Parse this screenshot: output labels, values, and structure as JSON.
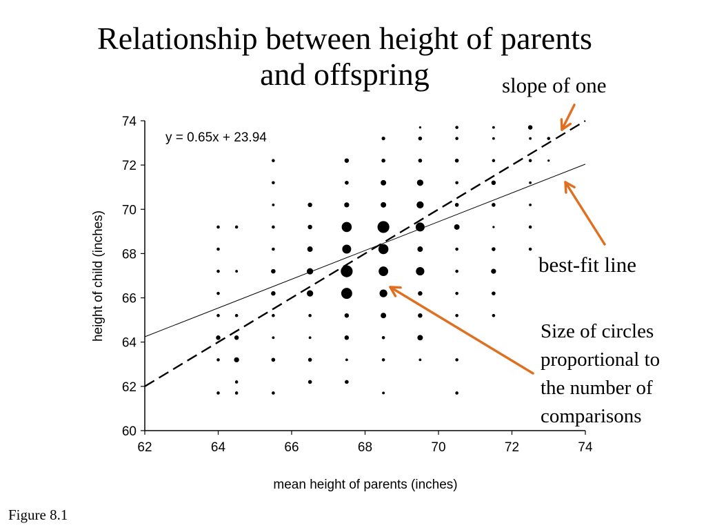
{
  "title_line1": "Relationship between height of parents",
  "title_line2": "and offspring",
  "annotations": {
    "slope_of_one": "slope of one",
    "best_fit_line": "best-fit line",
    "circle_size": [
      "Size of circles",
      "proportional to",
      "the number of",
      "comparisons"
    ]
  },
  "figure_label": "Figure 8.1",
  "colors": {
    "arrow": "#e07020",
    "points": "#000000"
  },
  "chart_data": {
    "type": "scatter",
    "xlabel": "mean height of parents (inches)",
    "ylabel": "height of child (inches)",
    "xlim": [
      62,
      74
    ],
    "ylim": [
      60,
      74
    ],
    "xticks": [
      "62",
      "64",
      "66",
      "68",
      "70",
      "72",
      "74"
    ],
    "yticks": [
      "60",
      "62",
      "64",
      "66",
      "68",
      "70",
      "72",
      "74"
    ],
    "grid": false,
    "equation": "y = 0.65x + 23.94",
    "best_fit": {
      "slope": 0.65,
      "intercept": 23.94,
      "style": "solid"
    },
    "slope_one_line": {
      "slope": 1,
      "intercept": 0,
      "style": "dashed"
    },
    "points": [
      {
        "x": 64,
        "y": 69.2,
        "size": 1
      },
      {
        "x": 64.5,
        "y": 69.2,
        "size": 1
      },
      {
        "x": 65.5,
        "y": 72.2,
        "size": 1
      },
      {
        "x": 65.5,
        "y": 71.2,
        "size": 1
      },
      {
        "x": 65.5,
        "y": 70.2,
        "size": 0.7
      },
      {
        "x": 65.5,
        "y": 69.2,
        "size": 1
      },
      {
        "x": 66.5,
        "y": 70.2,
        "size": 2
      },
      {
        "x": 66.5,
        "y": 69.2,
        "size": 2
      },
      {
        "x": 67.5,
        "y": 72.2,
        "size": 2
      },
      {
        "x": 67.5,
        "y": 71.2,
        "size": 1.5
      },
      {
        "x": 67.5,
        "y": 70.2,
        "size": 2.5
      },
      {
        "x": 67.5,
        "y": 69.2,
        "size": 10
      },
      {
        "x": 68.5,
        "y": 73.2,
        "size": 1.3
      },
      {
        "x": 68.5,
        "y": 72.2,
        "size": 1.5
      },
      {
        "x": 68.5,
        "y": 71.2,
        "size": 3
      },
      {
        "x": 68.5,
        "y": 70.2,
        "size": 3
      },
      {
        "x": 68.5,
        "y": 69.2,
        "size": 14
      },
      {
        "x": 69.5,
        "y": 73.7,
        "size": 0.5
      },
      {
        "x": 69.5,
        "y": 73.2,
        "size": 1.5
      },
      {
        "x": 69.5,
        "y": 72.2,
        "size": 1.5
      },
      {
        "x": 69.5,
        "y": 71.2,
        "size": 4
      },
      {
        "x": 69.5,
        "y": 70.2,
        "size": 5
      },
      {
        "x": 69.5,
        "y": 69.2,
        "size": 8
      },
      {
        "x": 70.5,
        "y": 73.7,
        "size": 1
      },
      {
        "x": 70.5,
        "y": 73.2,
        "size": 1
      },
      {
        "x": 70.5,
        "y": 72.2,
        "size": 1.5
      },
      {
        "x": 70.5,
        "y": 71.2,
        "size": 1
      },
      {
        "x": 70.5,
        "y": 70.2,
        "size": 1.5
      },
      {
        "x": 70.5,
        "y": 69.2,
        "size": 3
      },
      {
        "x": 71.5,
        "y": 73.7,
        "size": 0.7
      },
      {
        "x": 71.5,
        "y": 73.2,
        "size": 0.7
      },
      {
        "x": 71.5,
        "y": 72.2,
        "size": 1
      },
      {
        "x": 71.5,
        "y": 71.2,
        "size": 2
      },
      {
        "x": 71.5,
        "y": 70.2,
        "size": 1.5
      },
      {
        "x": 71.5,
        "y": 69.2,
        "size": 0.5
      },
      {
        "x": 72.5,
        "y": 73.7,
        "size": 2
      },
      {
        "x": 72.5,
        "y": 73.2,
        "size": 0.7
      },
      {
        "x": 72.5,
        "y": 72.2,
        "size": 1
      },
      {
        "x": 72.5,
        "y": 71.2,
        "size": 0.7
      },
      {
        "x": 72.5,
        "y": 70.2,
        "size": 0.7
      },
      {
        "x": 72.5,
        "y": 69.2,
        "size": 1
      },
      {
        "x": 73,
        "y": 73.2,
        "size": 1
      },
      {
        "x": 73,
        "y": 72.2,
        "size": 0.5
      },
      {
        "x": 64,
        "y": 68.2,
        "size": 1
      },
      {
        "x": 64,
        "y": 67.2,
        "size": 1
      },
      {
        "x": 64,
        "y": 66.2,
        "size": 1
      },
      {
        "x": 64,
        "y": 65.2,
        "size": 1
      },
      {
        "x": 64,
        "y": 64.2,
        "size": 2
      },
      {
        "x": 64,
        "y": 63.2,
        "size": 1
      },
      {
        "x": 64,
        "y": 61.7,
        "size": 1
      },
      {
        "x": 64.5,
        "y": 67.2,
        "size": 0.7
      },
      {
        "x": 64.5,
        "y": 65.2,
        "size": 1
      },
      {
        "x": 64.5,
        "y": 64.2,
        "size": 2
      },
      {
        "x": 64.5,
        "y": 63.2,
        "size": 2.5
      },
      {
        "x": 64.5,
        "y": 62.2,
        "size": 1
      },
      {
        "x": 64.5,
        "y": 61.7,
        "size": 1
      },
      {
        "x": 65.5,
        "y": 68.2,
        "size": 1
      },
      {
        "x": 65.5,
        "y": 67.2,
        "size": 2
      },
      {
        "x": 65.5,
        "y": 66.2,
        "size": 2
      },
      {
        "x": 65.5,
        "y": 65.2,
        "size": 1
      },
      {
        "x": 65.5,
        "y": 64.2,
        "size": 0.7
      },
      {
        "x": 65.5,
        "y": 63.2,
        "size": 1.5
      },
      {
        "x": 65.5,
        "y": 61.7,
        "size": 1
      },
      {
        "x": 66.5,
        "y": 68.2,
        "size": 3
      },
      {
        "x": 66.5,
        "y": 67.2,
        "size": 4
      },
      {
        "x": 66.5,
        "y": 66.2,
        "size": 4
      },
      {
        "x": 66.5,
        "y": 65.2,
        "size": 1
      },
      {
        "x": 66.5,
        "y": 64.2,
        "size": 0.7
      },
      {
        "x": 66.5,
        "y": 63.2,
        "size": 1.5
      },
      {
        "x": 66.5,
        "y": 62.2,
        "size": 1.5
      },
      {
        "x": 67.5,
        "y": 68.2,
        "size": 8
      },
      {
        "x": 67.5,
        "y": 67.2,
        "size": 14
      },
      {
        "x": 67.5,
        "y": 66.2,
        "size": 12
      },
      {
        "x": 67.5,
        "y": 65.2,
        "size": 2
      },
      {
        "x": 67.5,
        "y": 64.2,
        "size": 2
      },
      {
        "x": 67.5,
        "y": 63.2,
        "size": 0.7
      },
      {
        "x": 67.5,
        "y": 62.2,
        "size": 1.5
      },
      {
        "x": 68.5,
        "y": 68.2,
        "size": 10
      },
      {
        "x": 68.5,
        "y": 67.2,
        "size": 9
      },
      {
        "x": 68.5,
        "y": 66.2,
        "size": 6
      },
      {
        "x": 68.5,
        "y": 65.2,
        "size": 3
      },
      {
        "x": 68.5,
        "y": 64.2,
        "size": 1
      },
      {
        "x": 68.5,
        "y": 63.2,
        "size": 1
      },
      {
        "x": 68.5,
        "y": 61.7,
        "size": 0.7
      },
      {
        "x": 69.5,
        "y": 68.2,
        "size": 3
      },
      {
        "x": 69.5,
        "y": 67.2,
        "size": 7
      },
      {
        "x": 69.5,
        "y": 66.2,
        "size": 2
      },
      {
        "x": 69.5,
        "y": 65.2,
        "size": 2
      },
      {
        "x": 69.5,
        "y": 64.2,
        "size": 3
      },
      {
        "x": 69.5,
        "y": 63.2,
        "size": 0.7
      },
      {
        "x": 70.5,
        "y": 68.2,
        "size": 1
      },
      {
        "x": 70.5,
        "y": 67.2,
        "size": 1
      },
      {
        "x": 70.5,
        "y": 66.2,
        "size": 1
      },
      {
        "x": 70.5,
        "y": 65.2,
        "size": 1
      },
      {
        "x": 70.5,
        "y": 63.2,
        "size": 1
      },
      {
        "x": 70.5,
        "y": 61.7,
        "size": 1
      },
      {
        "x": 71.5,
        "y": 68.2,
        "size": 1.5
      },
      {
        "x": 71.5,
        "y": 67.2,
        "size": 2.5
      },
      {
        "x": 71.5,
        "y": 66.2,
        "size": 1.5
      },
      {
        "x": 71.5,
        "y": 65.2,
        "size": 1
      },
      {
        "x": 72.5,
        "y": 68.2,
        "size": 1
      }
    ]
  }
}
